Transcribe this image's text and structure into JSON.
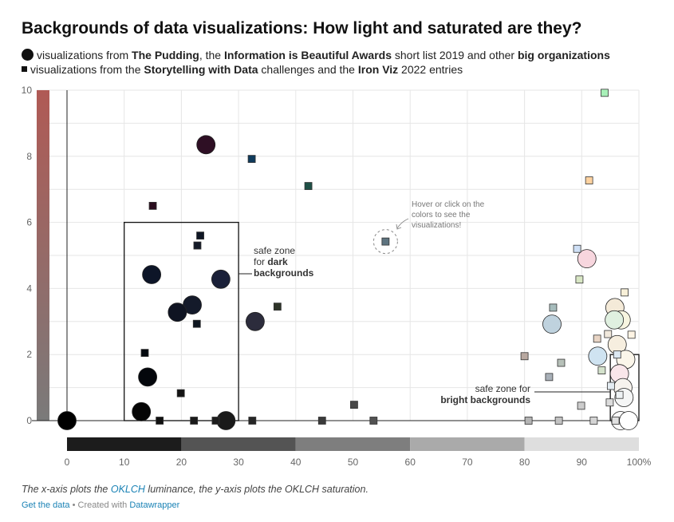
{
  "title": "Backgrounds of data visualizations: How light and saturated are they?",
  "legend": {
    "line1": [
      {
        "t": "visualizations from ",
        "b": false
      },
      {
        "t": "The Pudding",
        "b": true
      },
      {
        "t": ", the ",
        "b": false
      },
      {
        "t": "Information is Beautiful Awards",
        "b": true
      },
      {
        "t": " short list 2019 and other ",
        "b": false
      },
      {
        "t": "big organizations",
        "b": true
      }
    ],
    "line2": [
      {
        "t": "visualizations from the ",
        "b": false
      },
      {
        "t": "Storytelling with Data",
        "b": true
      },
      {
        "t": " challenges and the ",
        "b": false
      },
      {
        "t": "Iron Viz",
        "b": true
      },
      {
        "t": " 2022 entries",
        "b": false
      }
    ]
  },
  "footer": {
    "note_pre": "The x-axis plots the ",
    "note_link": "OKLCH",
    "note_post": " luminance, the y-axis plots the OKLCH saturation.",
    "get_data": "Get the data",
    "sep": " • Created with ",
    "tool": "Datawrapper"
  },
  "annotations": {
    "dark": [
      "safe zone",
      "for ",
      "dark",
      "backgrounds"
    ],
    "bright": [
      "safe zone for",
      "bright backgrounds"
    ],
    "hint": [
      "Hover or click on the",
      "colors to see the",
      "visualizations!"
    ]
  },
  "chart_data": {
    "type": "scatter",
    "xlabel": "",
    "ylabel": "",
    "xlim": [
      0,
      100
    ],
    "ylim": [
      0,
      10
    ],
    "x_ticks": [
      "0",
      "10",
      "20",
      "30",
      "40",
      "50",
      "60",
      "70",
      "80",
      "90",
      "100%"
    ],
    "y_ticks": [
      "0",
      "2",
      "4",
      "6",
      "8",
      "10"
    ],
    "safe_zones": [
      {
        "name": "dark backgrounds",
        "x": [
          10,
          30
        ],
        "y": [
          0,
          6
        ]
      },
      {
        "name": "bright backgrounds",
        "x": [
          95,
          100
        ],
        "y": [
          0,
          2
        ]
      }
    ],
    "series": [
      {
        "name": "visualizations from The Pudding, the Information is Beautiful Awards short list 2019 and other big organizations",
        "marker": "circle",
        "points": [
          {
            "x": 0,
            "y": 0,
            "color": "#000000"
          },
          {
            "x": 24.3,
            "y": 8.35,
            "color": "#2e0f24"
          },
          {
            "x": 14.8,
            "y": 4.42,
            "color": "#0d1528"
          },
          {
            "x": 26.9,
            "y": 4.28,
            "color": "#1a2038"
          },
          {
            "x": 21.9,
            "y": 3.5,
            "color": "#141a2a"
          },
          {
            "x": 19.3,
            "y": 3.28,
            "color": "#0f1422"
          },
          {
            "x": 32.9,
            "y": 3.0,
            "color": "#2c2c3c"
          },
          {
            "x": 14.1,
            "y": 1.32,
            "color": "#04070c"
          },
          {
            "x": 13.0,
            "y": 0.27,
            "color": "#050505"
          },
          {
            "x": 27.8,
            "y": 0.0,
            "color": "#1a1a1a"
          },
          {
            "x": 90.9,
            "y": 4.9,
            "color": "#f7d6de"
          },
          {
            "x": 84.8,
            "y": 2.92,
            "color": "#bfd2de"
          },
          {
            "x": 92.8,
            "y": 1.95,
            "color": "#cfe3f1"
          },
          {
            "x": 95.8,
            "y": 3.42,
            "color": "#f4ead8"
          },
          {
            "x": 96.9,
            "y": 3.05,
            "color": "#f7f5e0"
          },
          {
            "x": 95.7,
            "y": 3.05,
            "color": "#e0f0e0"
          },
          {
            "x": 96.2,
            "y": 2.3,
            "color": "#f6eedf"
          },
          {
            "x": 97.7,
            "y": 1.85,
            "color": "#fbf6ea"
          },
          {
            "x": 96.6,
            "y": 1.42,
            "color": "#f9e6ea"
          },
          {
            "x": 97.2,
            "y": 1.0,
            "color": "#f7f3ee"
          },
          {
            "x": 97.4,
            "y": 0.7,
            "color": "#f5f6f6"
          },
          {
            "x": 96.8,
            "y": 0.0,
            "color": "#fafafa"
          },
          {
            "x": 98.2,
            "y": 0.0,
            "color": "#ffffff"
          }
        ]
      },
      {
        "name": "visualizations from the Storytelling with Data challenges and the Iron Viz 2022 entries",
        "marker": "square",
        "points": [
          {
            "x": 15.0,
            "y": 6.5,
            "color": "#2a0d1e"
          },
          {
            "x": 32.3,
            "y": 7.92,
            "color": "#0f3b5c"
          },
          {
            "x": 42.2,
            "y": 7.1,
            "color": "#1e5046"
          },
          {
            "x": 23.3,
            "y": 5.6,
            "color": "#0f1624"
          },
          {
            "x": 22.8,
            "y": 5.3,
            "color": "#141a28"
          },
          {
            "x": 36.8,
            "y": 3.45,
            "color": "#2e3428"
          },
          {
            "x": 22.7,
            "y": 2.93,
            "color": "#0e1620"
          },
          {
            "x": 13.6,
            "y": 2.05,
            "color": "#050a10"
          },
          {
            "x": 19.9,
            "y": 0.83,
            "color": "#141414"
          },
          {
            "x": 16.2,
            "y": 0.0,
            "color": "#111111"
          },
          {
            "x": 22.2,
            "y": 0.0,
            "color": "#1a1a1a"
          },
          {
            "x": 26.0,
            "y": 0.0,
            "color": "#1e1e1e"
          },
          {
            "x": 32.4,
            "y": 0.0,
            "color": "#262626"
          },
          {
            "x": 44.6,
            "y": 0.0,
            "color": "#3a3a3a"
          },
          {
            "x": 50.2,
            "y": 0.48,
            "color": "#484848"
          },
          {
            "x": 53.6,
            "y": 0.0,
            "color": "#525252"
          },
          {
            "x": 55.7,
            "y": 5.42,
            "color": "#5e7480"
          },
          {
            "x": 94.0,
            "y": 9.92,
            "color": "#a8f0b8"
          },
          {
            "x": 91.3,
            "y": 7.27,
            "color": "#fed2a0"
          },
          {
            "x": 89.2,
            "y": 5.2,
            "color": "#cfe0f6"
          },
          {
            "x": 89.6,
            "y": 4.27,
            "color": "#d8e6c4"
          },
          {
            "x": 85.0,
            "y": 3.42,
            "color": "#a6bcbc"
          },
          {
            "x": 80.0,
            "y": 1.95,
            "color": "#b8a8a0"
          },
          {
            "x": 86.4,
            "y": 1.75,
            "color": "#b6c0b8"
          },
          {
            "x": 84.3,
            "y": 1.32,
            "color": "#a8b0b8"
          },
          {
            "x": 93.5,
            "y": 1.52,
            "color": "#d4e2cc"
          },
          {
            "x": 89.9,
            "y": 0.45,
            "color": "#cccccc"
          },
          {
            "x": 80.7,
            "y": 0.0,
            "color": "#b4b4b4"
          },
          {
            "x": 86.0,
            "y": 0.0,
            "color": "#c2c2c2"
          },
          {
            "x": 92.1,
            "y": 0.0,
            "color": "#d4d4d4"
          },
          {
            "x": 94.9,
            "y": 0.55,
            "color": "#dcdcdc"
          },
          {
            "x": 95.9,
            "y": 0.0,
            "color": "#e0e0e0"
          },
          {
            "x": 97.5,
            "y": 3.88,
            "color": "#f8f0d8"
          },
          {
            "x": 98.7,
            "y": 2.6,
            "color": "#fef4e4"
          },
          {
            "x": 92.7,
            "y": 2.48,
            "color": "#e8d4c4"
          },
          {
            "x": 94.6,
            "y": 2.62,
            "color": "#f0e8dc"
          },
          {
            "x": 96.2,
            "y": 2.0,
            "color": "#dce8f2"
          },
          {
            "x": 95.1,
            "y": 1.05,
            "color": "#e4ecf2"
          },
          {
            "x": 96.6,
            "y": 0.78,
            "color": "#eef2f4"
          }
        ]
      }
    ]
  }
}
